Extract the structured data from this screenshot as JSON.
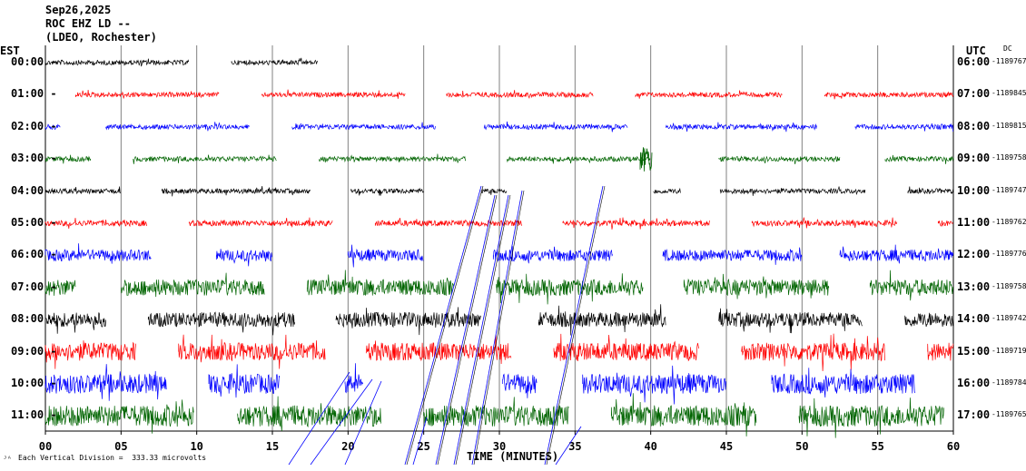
{
  "header": {
    "date": "Sep26,2025",
    "station": "ROC EHZ LD --",
    "network": "(LDEO, Rochester)"
  },
  "left_axis_title": "EST",
  "right_axis_title": "UTC",
  "dc_title": "DC",
  "footer": {
    "scale_text": "Each Vertical Division =  333.33 microvolts"
  },
  "chart_data": {
    "type": "helicorder",
    "xlabel": "TIME (MINUTES)",
    "xlim": [
      0,
      60
    ],
    "x_ticks": [
      "00",
      "05",
      "10",
      "15",
      "20",
      "25",
      "30",
      "35",
      "40",
      "45",
      "50",
      "55",
      "60"
    ],
    "rows": [
      {
        "est": "00:00",
        "utc": "06:00",
        "dc": "-1189767",
        "color": "#000000",
        "amp": 0.3,
        "segments": [
          [
            0,
            9.5
          ],
          [
            12.3,
            18
          ]
        ]
      },
      {
        "est": "01:00",
        "utc": "07:00",
        "dc": "-1189845",
        "color": "#ff0000",
        "amp": 0.3,
        "segments": [
          [
            2,
            11.5
          ],
          [
            14.3,
            23.8
          ],
          [
            26.5,
            36.2
          ],
          [
            39,
            48.7
          ],
          [
            51.5,
            60
          ]
        ]
      },
      {
        "est": "02:00",
        "utc": "08:00",
        "dc": "-1189815",
        "color": "#0000ff",
        "amp": 0.3,
        "segments": [
          [
            0,
            1
          ],
          [
            4,
            13.5
          ],
          [
            16.3,
            25.8
          ],
          [
            29,
            38.5
          ],
          [
            41,
            51
          ],
          [
            53.5,
            60
          ]
        ]
      },
      {
        "est": "03:00",
        "utc": "09:00",
        "dc": "-1189758",
        "color": "#006400",
        "amp": 0.3,
        "segments": [
          [
            0,
            3
          ],
          [
            5.8,
            15.3
          ],
          [
            18.1,
            27.8
          ],
          [
            30.5,
            40
          ],
          [
            44.5,
            52.5
          ],
          [
            55.5,
            60
          ]
        ]
      },
      {
        "est": "04:00",
        "utc": "10:00",
        "dc": "-1189747",
        "color": "#000000",
        "amp": 0.3,
        "segments": [
          [
            0,
            5
          ],
          [
            7.7,
            17.5
          ],
          [
            20.2,
            25
          ],
          [
            28.8,
            30.5
          ],
          [
            40.2,
            42
          ],
          [
            44.6,
            54.2
          ],
          [
            57,
            60
          ]
        ]
      },
      {
        "est": "05:00",
        "utc": "11:00",
        "dc": "-1189762",
        "color": "#ff0000",
        "amp": 0.35,
        "segments": [
          [
            0,
            6.7
          ],
          [
            9.5,
            19
          ],
          [
            21.8,
            31.5
          ],
          [
            34.2,
            43.9
          ],
          [
            46.7,
            56.3
          ],
          [
            59,
            60
          ]
        ]
      },
      {
        "est": "06:00",
        "utc": "12:00",
        "dc": "-1189776",
        "color": "#0000ff",
        "amp": 0.7,
        "segments": [
          [
            0,
            7
          ],
          [
            11.3,
            15
          ],
          [
            20,
            25
          ],
          [
            29.6,
            37.5
          ],
          [
            40.8,
            50
          ],
          [
            52.5,
            60
          ]
        ]
      },
      {
        "est": "07:00",
        "utc": "13:00",
        "dc": "-1189758",
        "color": "#006400",
        "amp": 1.0,
        "segments": [
          [
            0,
            2
          ],
          [
            5,
            14.5
          ],
          [
            17.3,
            27
          ],
          [
            29.8,
            39.5
          ],
          [
            42.2,
            51.8
          ],
          [
            54.5,
            60
          ]
        ]
      },
      {
        "est": "08:00",
        "utc": "14:00",
        "dc": "-1189742",
        "color": "#000000",
        "amp": 0.9,
        "segments": [
          [
            0,
            4
          ],
          [
            6.8,
            16.5
          ],
          [
            19.2,
            28.8
          ],
          [
            32.6,
            41
          ],
          [
            44.5,
            54
          ],
          [
            56.8,
            60
          ]
        ]
      },
      {
        "est": "09:00",
        "utc": "15:00",
        "dc": "-1189719",
        "color": "#ff0000",
        "amp": 1.1,
        "segments": [
          [
            0,
            6
          ],
          [
            8.8,
            18.5
          ],
          [
            21.2,
            30.8
          ],
          [
            33.6,
            43.2
          ],
          [
            46,
            55.5
          ],
          [
            58.3,
            60
          ]
        ]
      },
      {
        "est": "10:00",
        "utc": "16:00",
        "dc": "-1189784",
        "color": "#0000ff",
        "amp": 1.2,
        "segments": [
          [
            0,
            8
          ],
          [
            10.8,
            15.5
          ],
          [
            19.8,
            21
          ],
          [
            30.2,
            32.5
          ],
          [
            35.5,
            45
          ],
          [
            48,
            57.5
          ]
        ]
      },
      {
        "est": "11:00",
        "utc": "17:00",
        "dc": "-1189765",
        "color": "#006400",
        "amp": 1.3,
        "segments": [
          [
            0,
            9.8
          ],
          [
            12.7,
            22.2
          ],
          [
            25,
            34.6
          ],
          [
            37.4,
            47
          ],
          [
            49.8,
            59.4
          ]
        ]
      }
    ]
  }
}
